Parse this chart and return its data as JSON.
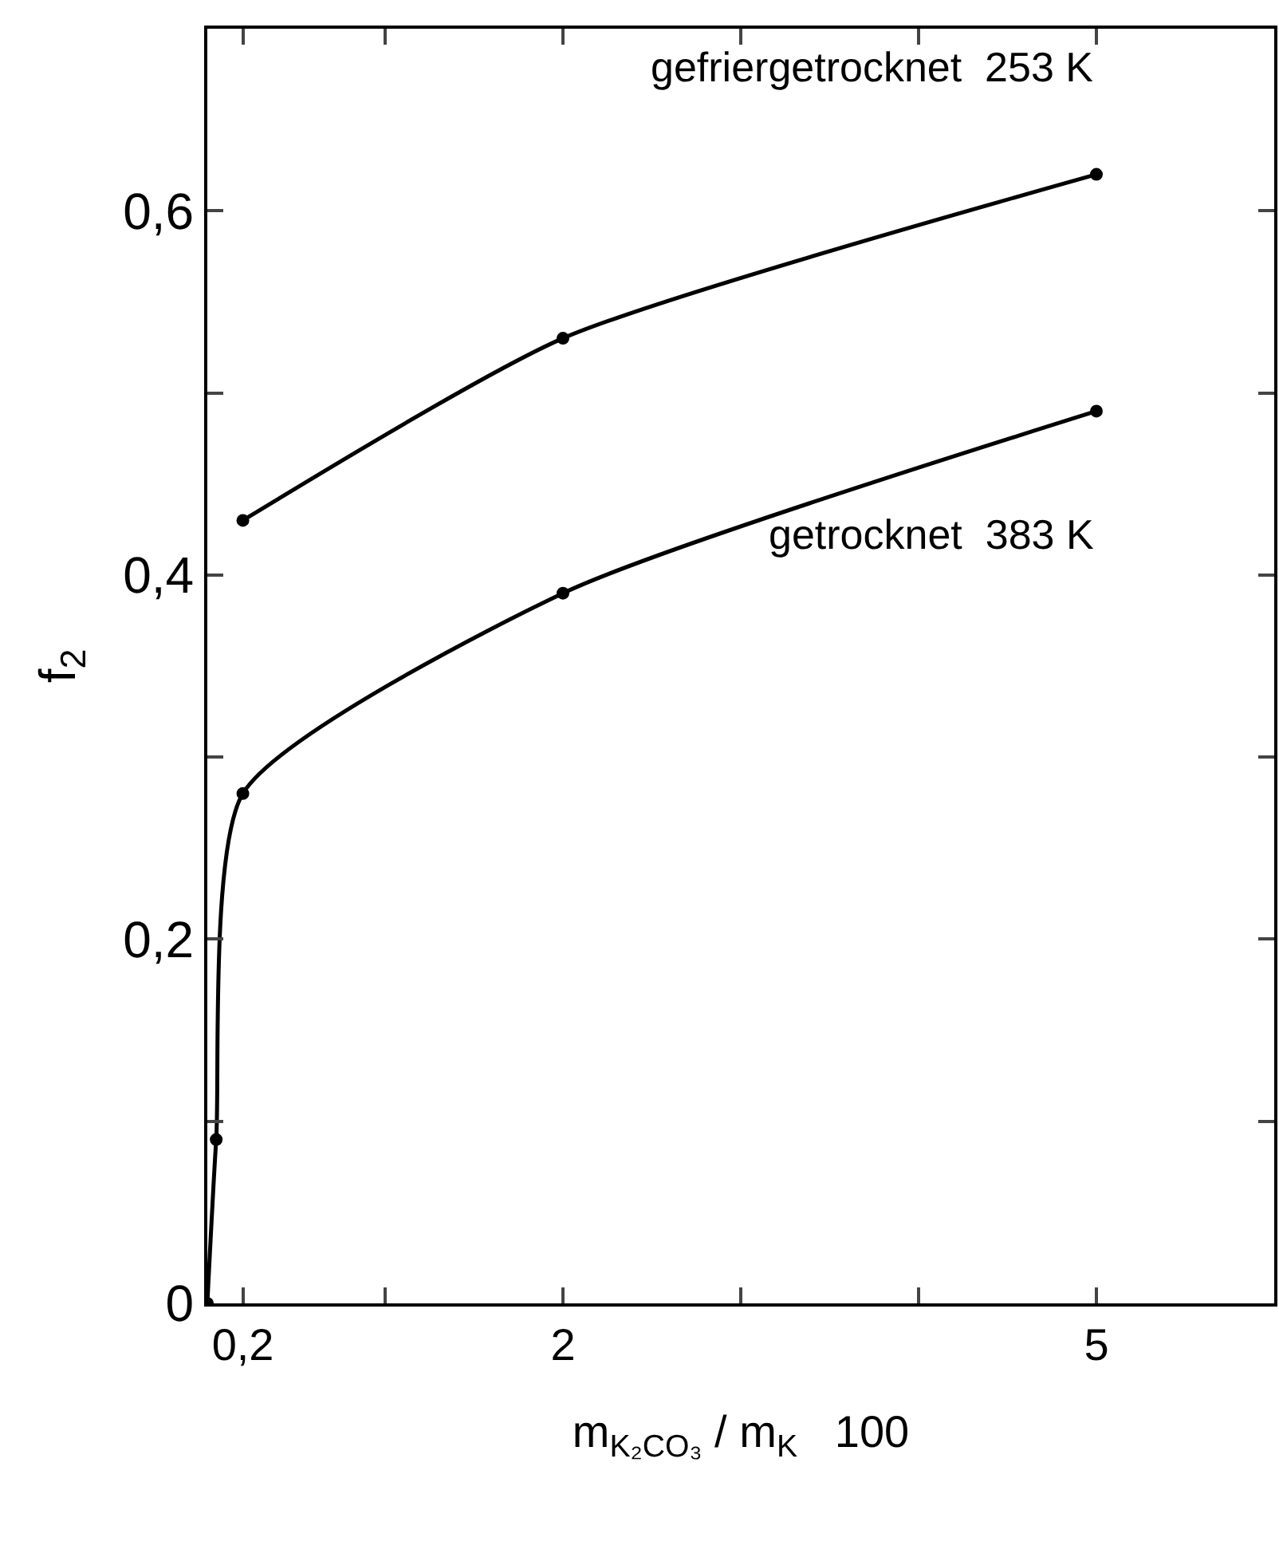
{
  "chart_data": {
    "type": "line",
    "xlabel": "m$_{K₂CO₃}$ / m$_{K}$   100",
    "ylabel": "f$_{2}$",
    "xlim": [
      0,
      6
    ],
    "xticks": [
      {
        "value": 0.2,
        "label": "0,2"
      },
      {
        "value": 1,
        "label": null
      },
      2,
      {
        "value": 3,
        "label": null
      },
      {
        "value": 4,
        "label": null
      },
      5
    ],
    "ylim": [
      0,
      0.7
    ],
    "yticks": [
      0,
      {
        "value": 0.1,
        "label": null
      },
      {
        "value": 0.2,
        "label": "0,2"
      },
      {
        "value": 0.3,
        "label": null
      },
      {
        "value": 0.4,
        "label": "0,4"
      },
      {
        "value": 0.5,
        "label": null
      },
      {
        "value": 0.6,
        "label": "0,6"
      }
    ],
    "series": [
      {
        "name": "gefriergetrocknet  253 K",
        "color": "#000000",
        "x": [
          0.2,
          2,
          5
        ],
        "values": [
          0.43,
          0.53,
          0.62
        ]
      },
      {
        "name": "getrocknet  383 K",
        "color": "#000000",
        "x": [
          0,
          0.05,
          0.2,
          2,
          5
        ],
        "values": [
          0,
          0.09,
          0.28,
          0.39,
          0.49
        ]
      }
    ],
    "grid": false,
    "legend": false,
    "marker": "circle",
    "line_style": "solid"
  }
}
